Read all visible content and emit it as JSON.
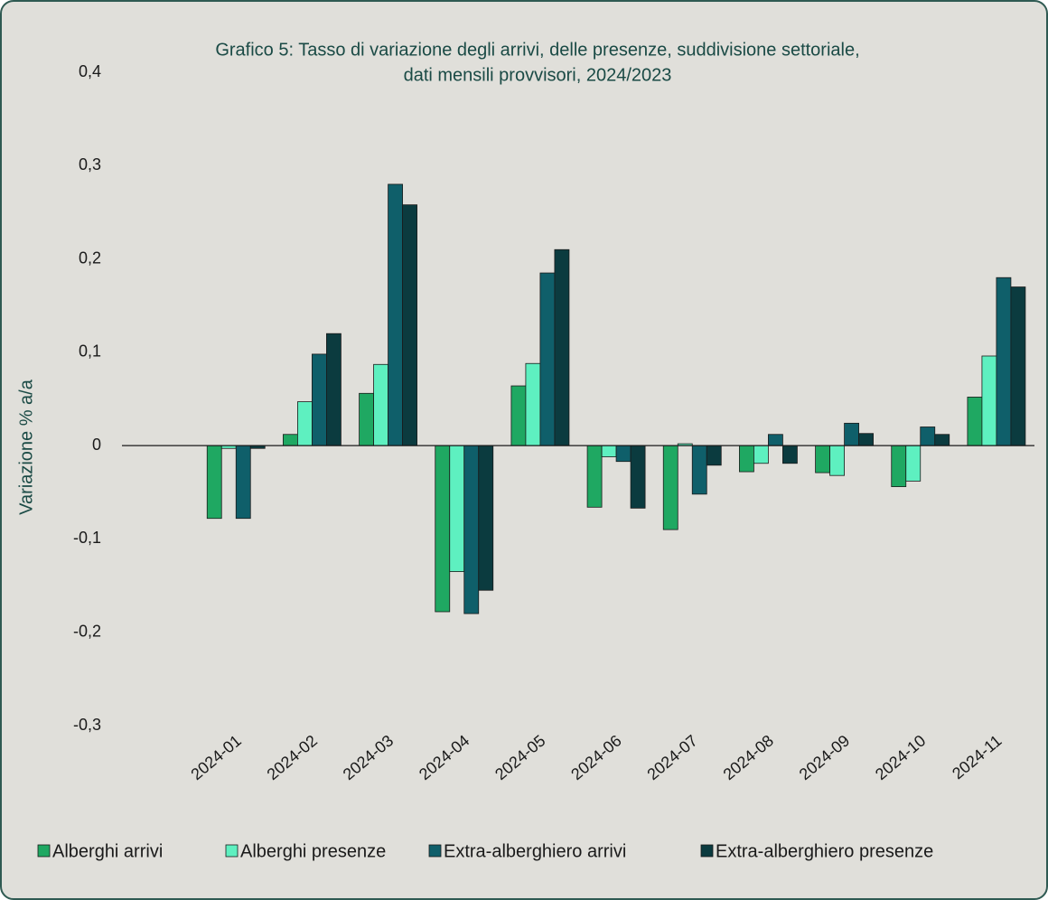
{
  "chart_data": {
    "type": "bar",
    "title": [
      "Grafico 5: Tasso di variazione degli arrivi, delle presenze, suddivisione settoriale,",
      "dati mensili provvisori, 2024/2023"
    ],
    "y_axis_label": "Variazione % a/a",
    "categories": [
      null,
      "2024-01",
      "2024-02",
      "2024-03",
      "2024-04",
      "2024-05",
      "2024-06",
      "2024-07",
      "2024-08",
      "2024-09",
      "2024-10",
      "2024-11"
    ],
    "series": [
      {
        "name": "Alberghi arrivi",
        "color": "#1fa862",
        "values": [
          null,
          -0.078,
          0.012,
          0.056,
          -0.178,
          0.064,
          -0.066,
          -0.09,
          -0.028,
          -0.029,
          -0.044,
          0.052
        ]
      },
      {
        "name": "Alberghi presenze",
        "color": "#5ef0c0",
        "values": [
          null,
          -0.003,
          0.047,
          0.087,
          -0.135,
          0.088,
          -0.012,
          0.002,
          -0.019,
          -0.032,
          -0.038,
          0.096
        ]
      },
      {
        "name": "Extra-alberghiero arrivi",
        "color": "#0f5f6a",
        "values": [
          null,
          -0.078,
          0.098,
          0.28,
          -0.18,
          0.185,
          -0.017,
          -0.052,
          0.012,
          0.024,
          0.02,
          0.18
        ]
      },
      {
        "name": "Extra-alberghiero presenze",
        "color": "#0b3b3f",
        "values": [
          null,
          -0.003,
          0.12,
          0.258,
          -0.155,
          0.21,
          -0.067,
          -0.021,
          -0.019,
          0.013,
          0.012,
          0.17
        ]
      }
    ],
    "ylim": [
      -0.3,
      0.4
    ],
    "yticks": [
      {
        "value": -0.3,
        "label": "-0,3"
      },
      {
        "value": -0.2,
        "label": "-0,2"
      },
      {
        "value": -0.1,
        "label": "-0,1"
      },
      0,
      {
        "value": 0.1,
        "label": "0,1"
      },
      {
        "value": 0.2,
        "label": "0,2"
      },
      {
        "value": 0.3,
        "label": "0,3"
      },
      {
        "value": 0.4,
        "label": "0,4"
      }
    ],
    "grid": false,
    "legend": "bottom"
  }
}
